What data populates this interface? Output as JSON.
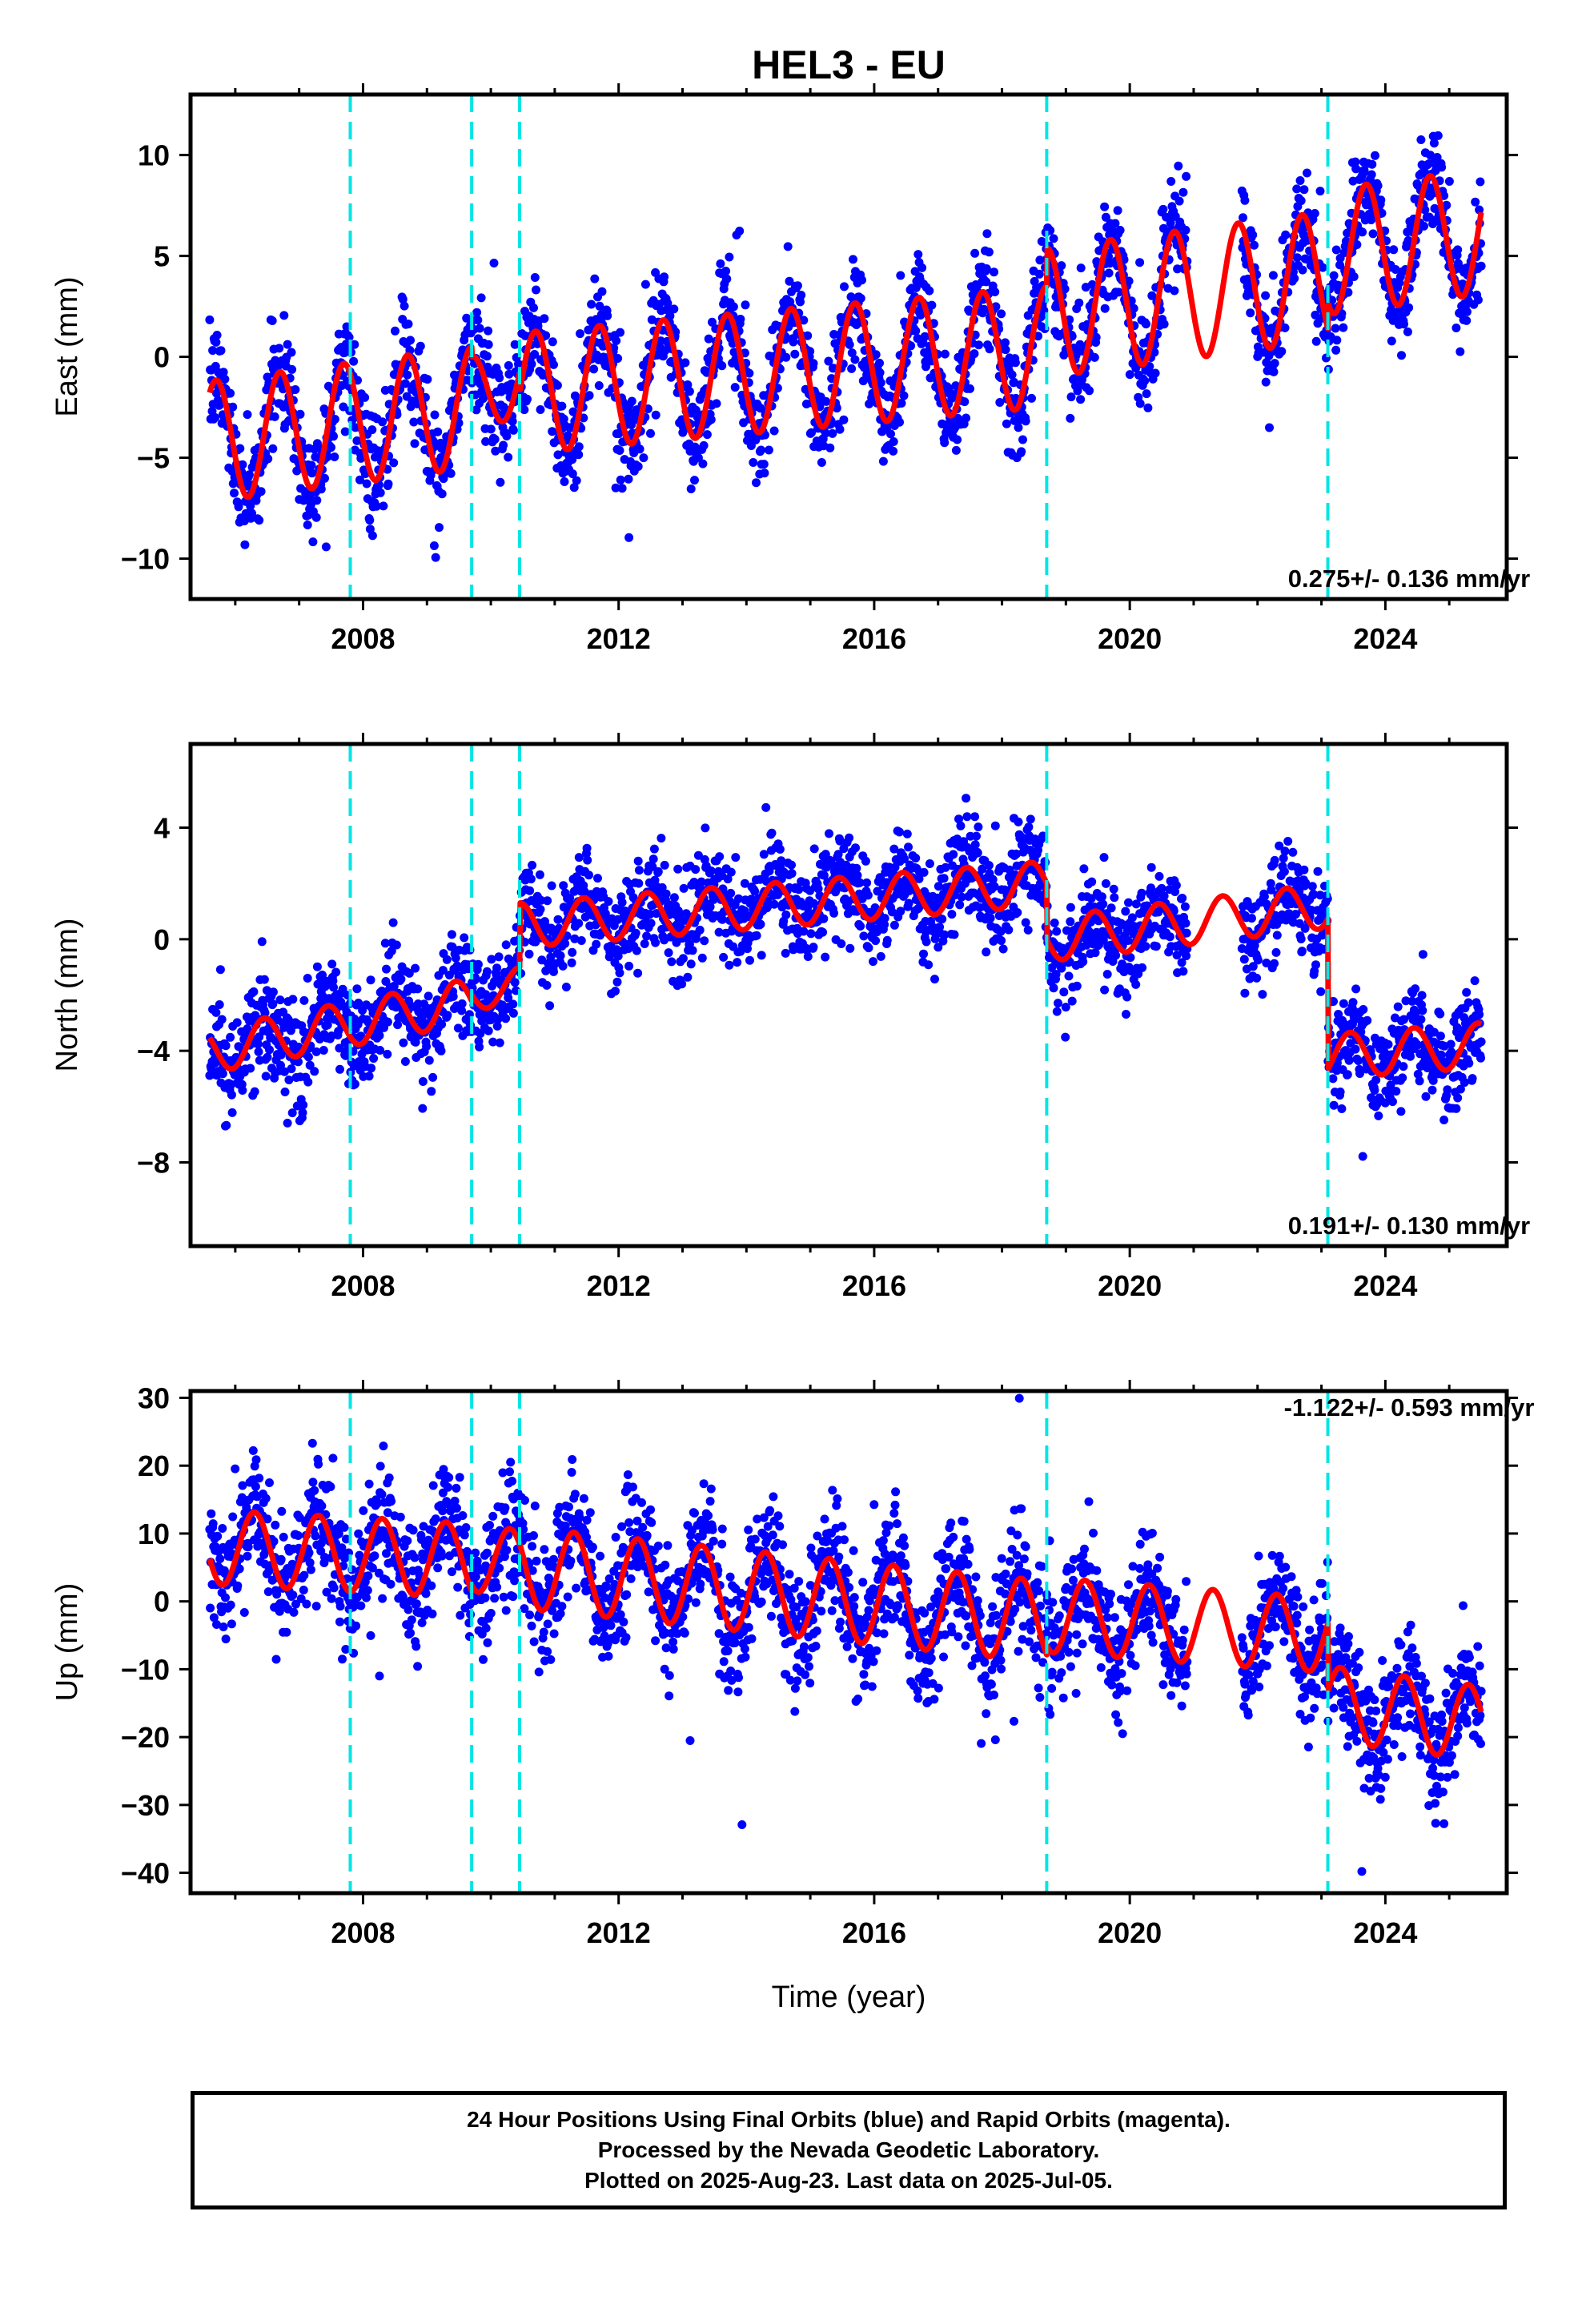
{
  "title": "HEL3 - EU",
  "xlabel": "Time (year)",
  "footer": {
    "lines": [
      "24 Hour Positions Using Final Orbits (blue) and Rapid Orbits (magenta).",
      "Processed by the Nevada Geodetic Laboratory.",
      "Plotted on 2025-Aug-23. Last data on 2025-Jul-05."
    ]
  },
  "colors": {
    "data_points": "#0000ff",
    "model_fit": "#ff0000",
    "step_lines": "#00e5e5",
    "frame": "#000000"
  },
  "chart_data": [
    {
      "type": "scatter",
      "ylabel": "East (mm)",
      "rate_label": "0.275+/- 0.136 mm/yr",
      "xlim": [
        2005.3,
        2025.9
      ],
      "ylim": [
        -12,
        13
      ],
      "xticks": [
        2008,
        2012,
        2016,
        2020,
        2024
      ],
      "yticks": [
        -10,
        -5,
        0,
        5,
        10
      ],
      "step_lines_x": [
        2007.8,
        2009.7,
        2010.45,
        2018.7,
        2023.1
      ],
      "data_range": [
        2005.6,
        2025.5
      ],
      "model": {
        "segments": [
          {
            "x0": 2005.6,
            "x1": 2009.7,
            "trend": [
              [
                2005.6,
                -4.2
              ],
              [
                2009.7,
                -2.5
              ]
            ],
            "amp": 3.0
          },
          {
            "x0": 2009.7,
            "x1": 2010.45,
            "trend": [
              [
                2009.7,
                -2.0
              ],
              [
                2010.45,
                -0.8
              ]
            ],
            "amp": 2.0
          },
          {
            "x0": 2010.45,
            "x1": 2018.7,
            "trend": [
              [
                2010.45,
                -1.8
              ],
              [
                2018.7,
                0.5
              ]
            ],
            "amp": 3.0
          },
          {
            "x0": 2018.7,
            "x1": 2023.1,
            "trend": [
              [
                2018.7,
                2.2
              ],
              [
                2023.1,
                4.0
              ]
            ],
            "amp": 3.2
          },
          {
            "x0": 2023.1,
            "x1": 2025.5,
            "trend": [
              [
                2023.1,
                5.2
              ],
              [
                2025.5,
                6.2
              ]
            ],
            "amp": 3.1
          }
        ],
        "phase": 0.45,
        "noise_sd": 1.3
      }
    },
    {
      "type": "scatter",
      "ylabel": "North (mm)",
      "rate_label": "0.191+/- 0.130 mm/yr",
      "xlim": [
        2005.3,
        2025.9
      ],
      "ylim": [
        -11,
        7
      ],
      "xticks": [
        2008,
        2012,
        2016,
        2020,
        2024
      ],
      "yticks": [
        -8,
        -4,
        0,
        4
      ],
      "step_lines_x": [
        2007.8,
        2009.7,
        2010.45,
        2018.7,
        2023.1
      ],
      "data_range": [
        2005.6,
        2025.5
      ],
      "model": {
        "segments": [
          {
            "x0": 2005.6,
            "x1": 2009.7,
            "trend": [
              [
                2005.6,
                -4.0
              ],
              [
                2009.7,
                -2.2
              ]
            ],
            "amp": 0.8
          },
          {
            "x0": 2009.7,
            "x1": 2010.45,
            "trend": [
              [
                2009.7,
                -2.0
              ],
              [
                2010.45,
                -1.6
              ]
            ],
            "amp": 0.6
          },
          {
            "x0": 2010.45,
            "x1": 2018.7,
            "trend": [
              [
                2010.45,
                0.5
              ],
              [
                2018.7,
                2.0
              ]
            ],
            "amp": 0.8
          },
          {
            "x0": 2018.7,
            "x1": 2023.1,
            "trend": [
              [
                2018.7,
                0.0
              ],
              [
                2023.1,
                1.2
              ]
            ],
            "amp": 0.8
          },
          {
            "x0": 2023.1,
            "x1": 2025.5,
            "trend": [
              [
                2023.1,
                -4.2
              ],
              [
                2025.5,
                -3.8
              ]
            ],
            "amp": 0.8
          }
        ],
        "phase": 0.2,
        "noise_sd": 0.9
      }
    },
    {
      "type": "scatter",
      "ylabel": "Up (mm)",
      "rate_label": "-1.122+/- 0.593 mm/yr",
      "xlim": [
        2005.3,
        2025.9
      ],
      "ylim": [
        -43,
        31
      ],
      "xticks": [
        2008,
        2012,
        2016,
        2020,
        2024
      ],
      "yticks": [
        -40,
        -30,
        -20,
        -10,
        0,
        10,
        20,
        30
      ],
      "step_lines_x": [
        2007.8,
        2009.7,
        2010.45,
        2018.7,
        2023.1
      ],
      "data_range": [
        2005.6,
        2025.5
      ],
      "model": {
        "segments": [
          {
            "x0": 2005.6,
            "x1": 2009.7,
            "trend": [
              [
                2005.6,
                8.0
              ],
              [
                2009.7,
                6.0
              ]
            ],
            "amp": 5.5
          },
          {
            "x0": 2009.7,
            "x1": 2010.45,
            "trend": [
              [
                2009.7,
                6.5
              ],
              [
                2010.45,
                5.5
              ]
            ],
            "amp": 5.0
          },
          {
            "x0": 2010.45,
            "x1": 2018.7,
            "trend": [
              [
                2010.45,
                5.0
              ],
              [
                2018.7,
                -3.0
              ]
            ],
            "amp": 6.0
          },
          {
            "x0": 2018.7,
            "x1": 2023.1,
            "trend": [
              [
                2018.7,
                -2.0
              ],
              [
                2023.1,
                -5.0
              ]
            ],
            "amp": 5.5
          },
          {
            "x0": 2023.1,
            "x1": 2025.5,
            "trend": [
              [
                2023.1,
                -15.0
              ],
              [
                2025.5,
                -18.0
              ]
            ],
            "amp": 5.5
          }
        ],
        "phase": 0.05,
        "noise_sd": 4.5
      }
    }
  ]
}
